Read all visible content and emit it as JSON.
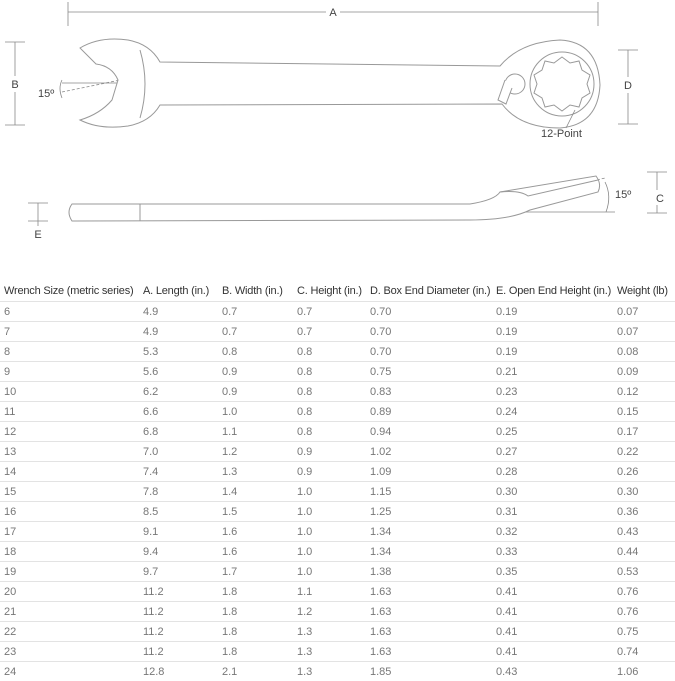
{
  "diagram": {
    "labels": {
      "A": "A",
      "B": "B",
      "C": "C",
      "D": "D",
      "E": "E"
    },
    "angle_top": "15º",
    "angle_side": "15º",
    "box_end": "12-Point"
  },
  "table": {
    "headers": [
      "Wrench Size (metric series)",
      "A. Length (in.)",
      "B. Width (in.)",
      "C. Height (in.)",
      "D. Box End Diameter (in.)",
      "E. Open End Height (in.)",
      "Weight (lb)"
    ],
    "rows": [
      [
        "6",
        "4.9",
        "0.7",
        "0.7",
        "0.70",
        "0.19",
        "0.07"
      ],
      [
        "7",
        "4.9",
        "0.7",
        "0.7",
        "0.70",
        "0.19",
        "0.07"
      ],
      [
        "8",
        "5.3",
        "0.8",
        "0.8",
        "0.70",
        "0.19",
        "0.08"
      ],
      [
        "9",
        "5.6",
        "0.9",
        "0.8",
        "0.75",
        "0.21",
        "0.09"
      ],
      [
        "10",
        "6.2",
        "0.9",
        "0.8",
        "0.83",
        "0.23",
        "0.12"
      ],
      [
        "11",
        "6.6",
        "1.0",
        "0.8",
        "0.89",
        "0.24",
        "0.15"
      ],
      [
        "12",
        "6.8",
        "1.1",
        "0.8",
        "0.94",
        "0.25",
        "0.17"
      ],
      [
        "13",
        "7.0",
        "1.2",
        "0.9",
        "1.02",
        "0.27",
        "0.22"
      ],
      [
        "14",
        "7.4",
        "1.3",
        "0.9",
        "1.09",
        "0.28",
        "0.26"
      ],
      [
        "15",
        "7.8",
        "1.4",
        "1.0",
        "1.15",
        "0.30",
        "0.30"
      ],
      [
        "16",
        "8.5",
        "1.5",
        "1.0",
        "1.25",
        "0.31",
        "0.36"
      ],
      [
        "17",
        "9.1",
        "1.6",
        "1.0",
        "1.34",
        "0.32",
        "0.43"
      ],
      [
        "18",
        "9.4",
        "1.6",
        "1.0",
        "1.34",
        "0.33",
        "0.44"
      ],
      [
        "19",
        "9.7",
        "1.7",
        "1.0",
        "1.38",
        "0.35",
        "0.53"
      ],
      [
        "20",
        "11.2",
        "1.8",
        "1.1",
        "1.63",
        "0.41",
        "0.76"
      ],
      [
        "21",
        "11.2",
        "1.8",
        "1.2",
        "1.63",
        "0.41",
        "0.76"
      ],
      [
        "22",
        "11.2",
        "1.8",
        "1.3",
        "1.63",
        "0.41",
        "0.75"
      ],
      [
        "23",
        "11.2",
        "1.8",
        "1.3",
        "1.63",
        "0.41",
        "0.74"
      ],
      [
        "24",
        "12.8",
        "2.1",
        "1.3",
        "1.85",
        "0.43",
        "1.06"
      ]
    ]
  }
}
